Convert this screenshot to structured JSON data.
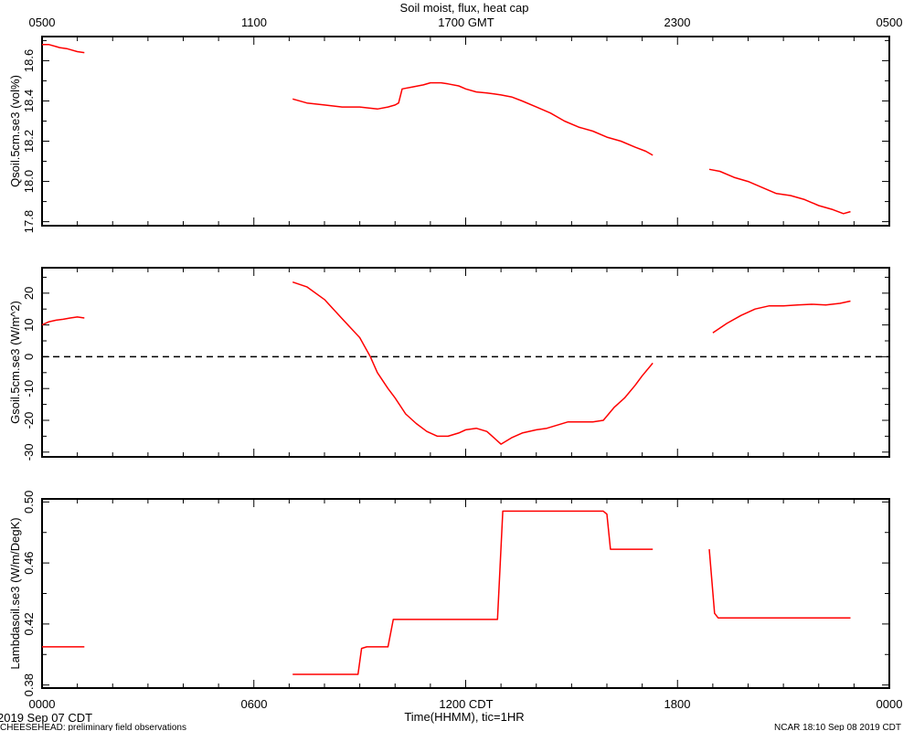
{
  "header": {
    "title": "Soil moist, flux, heat cap",
    "top_ticks": [
      "0500",
      "1100",
      "1700 GMT",
      "2300",
      "0500"
    ]
  },
  "footer": {
    "bottom_ticks": [
      "0000",
      "0600",
      "1200 CDT",
      "1800",
      "0000"
    ],
    "xlabel": "Time(HHMM), tic=1HR",
    "date_label": "2019 Sep 07 CDT",
    "project_label": "CHEESEHEAD: preliminary field observations",
    "stamp_label": "NCAR 18:10 Sep 08 2019 CDT"
  },
  "colors": {
    "series": "#ff0000",
    "axis": "#000000",
    "zero_line": "#000000"
  },
  "chart_data": [
    {
      "type": "line",
      "ylabel": "Qsoil.5cm.se3 (vol%)",
      "x_unit": "hours CDT",
      "xlim": [
        0,
        24
      ],
      "ylim": [
        17.78,
        18.72
      ],
      "yticks": [
        "17.8",
        "18.0",
        "18.2",
        "18.4",
        "18.6"
      ],
      "segments": [
        {
          "x": [
            0,
            0.2,
            0.4,
            0.5,
            0.7,
            0.8,
            1.0,
            1.2
          ],
          "y": [
            18.68,
            18.68,
            18.67,
            18.665,
            18.66,
            18.655,
            18.645,
            18.64
          ]
        },
        {
          "x": [
            7.1,
            7.5,
            8.0,
            8.5,
            9.0,
            9.5,
            9.8,
            10.0,
            10.1,
            10.2,
            10.5,
            10.8,
            11.0,
            11.3,
            11.5,
            11.8,
            12.0,
            12.3,
            12.6,
            12.8,
            13.0,
            13.3,
            13.6,
            14.0,
            14.4,
            14.8,
            15.2,
            15.6,
            16.0,
            16.4,
            16.8,
            17.1,
            17.3
          ],
          "y": [
            18.41,
            18.39,
            18.38,
            18.37,
            18.37,
            18.36,
            18.37,
            18.38,
            18.39,
            18.46,
            18.47,
            18.48,
            18.49,
            18.49,
            18.485,
            18.475,
            18.46,
            18.445,
            18.44,
            18.435,
            18.43,
            18.42,
            18.4,
            18.37,
            18.34,
            18.3,
            18.27,
            18.25,
            18.22,
            18.2,
            18.17,
            18.15,
            18.13
          ]
        },
        {
          "x": [
            18.9,
            19.2,
            19.6,
            20.0,
            20.4,
            20.8,
            21.0,
            21.2,
            21.6,
            22.0,
            22.4,
            22.7,
            22.9
          ],
          "y": [
            18.06,
            18.05,
            18.02,
            18.0,
            17.97,
            17.94,
            17.935,
            17.93,
            17.91,
            17.88,
            17.86,
            17.84,
            17.85
          ]
        }
      ]
    },
    {
      "type": "line",
      "ylabel": "Gsoil.5cm.se3 (W/m^2)",
      "x_unit": "hours CDT",
      "xlim": [
        0,
        24
      ],
      "ylim": [
        -31.5,
        28
      ],
      "yticks": [
        "-30",
        "-20",
        "-10",
        "0",
        "10",
        "20"
      ],
      "zero_line": true,
      "segments": [
        {
          "x": [
            0,
            0.2,
            0.4,
            0.6,
            0.8,
            1.0,
            1.2
          ],
          "y": [
            10,
            11,
            11.5,
            11.8,
            12.2,
            12.5,
            12.2
          ]
        },
        {
          "x": [
            7.1,
            7.5,
            8.0,
            8.5,
            9.0,
            9.3,
            9.5,
            9.8,
            10.0,
            10.3,
            10.6,
            10.9,
            11.2,
            11.5,
            11.8,
            12.0,
            12.3,
            12.6,
            12.8,
            13.0,
            13.3,
            13.6,
            14.0,
            14.3,
            14.6,
            14.9,
            15.1,
            15.3,
            15.6,
            15.9,
            16.2,
            16.5,
            16.8,
            17.0,
            17.3
          ],
          "y": [
            23.5,
            22,
            18,
            12,
            6,
            0,
            -5,
            -10,
            -13,
            -18,
            -21,
            -23.5,
            -25,
            -25,
            -24,
            -23,
            -22.5,
            -23.5,
            -25.5,
            -27.5,
            -25.5,
            -24,
            -23,
            -22.5,
            -21.5,
            -20.5,
            -20.5,
            -20.5,
            -20.5,
            -20,
            -16,
            -13,
            -9,
            -6,
            -2
          ]
        },
        {
          "x": [
            19.0,
            19.4,
            19.8,
            20.2,
            20.6,
            21.0,
            21.4,
            21.8,
            22.2,
            22.6,
            22.9
          ],
          "y": [
            7.5,
            10.5,
            13,
            15,
            16,
            16,
            16.3,
            16.5,
            16.3,
            16.8,
            17.5
          ]
        }
      ]
    },
    {
      "type": "line",
      "ylabel": "Lambdasoil.se3 (W/m/DegK)",
      "x_unit": "hours CDT",
      "xlim": [
        0,
        24
      ],
      "ylim": [
        0.378,
        0.502
      ],
      "yticks": [
        "0.38",
        "0.42",
        "0.46",
        "0.50"
      ],
      "segments": [
        {
          "x": [
            0,
            1.2
          ],
          "y": [
            0.405,
            0.405
          ]
        },
        {
          "x": [
            7.1,
            8.95,
            9.05,
            9.2,
            9.8,
            9.95,
            12.5,
            12.9,
            13.05,
            15.9,
            16.0,
            16.1,
            17.3
          ],
          "y": [
            0.387,
            0.387,
            0.404,
            0.405,
            0.405,
            0.423,
            0.423,
            0.423,
            0.494,
            0.494,
            0.492,
            0.469,
            0.469
          ]
        },
        {
          "x": [
            18.9,
            19.05,
            19.15,
            22.9
          ],
          "y": [
            0.469,
            0.427,
            0.424,
            0.424
          ]
        }
      ]
    }
  ]
}
